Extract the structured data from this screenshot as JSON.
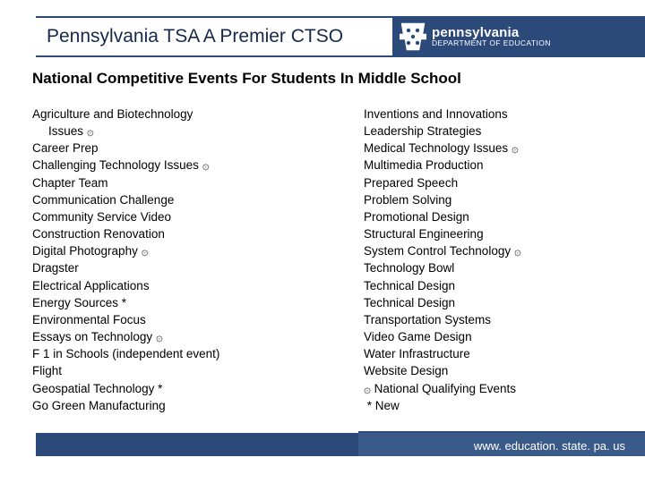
{
  "colors": {
    "primary": "#2b4a7a",
    "primary_light": "#3a5a8a",
    "text": "#000000",
    "title_text": "#16294a",
    "white": "#ffffff"
  },
  "header": {
    "title": "Pennsylvania TSA A Premier CTSO",
    "logo_line1": "pennsylvania",
    "logo_line2": "DEPARTMENT OF EDUCATION"
  },
  "subtitle": "National Competitive Events For Students In Middle School",
  "left_column": [
    {
      "text": "Agriculture and Biotechnology",
      "indent": false
    },
    {
      "text": "Issues ۞",
      "indent": true
    },
    {
      "text": "Career Prep",
      "indent": false
    },
    {
      "text": "Challenging Technology Issues ۞",
      "indent": false
    },
    {
      "text": "Chapter Team",
      "indent": false
    },
    {
      "text": "Communication Challenge",
      "indent": false
    },
    {
      "text": "Community Service Video",
      "indent": false
    },
    {
      "text": "Construction Renovation",
      "indent": false
    },
    {
      "text": "Digital Photography ۞",
      "indent": false
    },
    {
      "text": "Dragster",
      "indent": false
    },
    {
      "text": "Electrical Applications",
      "indent": false
    },
    {
      "text": "Energy Sources *",
      "indent": false
    },
    {
      "text": "Environmental Focus",
      "indent": false
    },
    {
      "text": "Essays on Technology ۞",
      "indent": false
    },
    {
      "text": "F 1 in Schools (independent event)",
      "indent": false
    },
    {
      "text": "Flight",
      "indent": false
    },
    {
      "text": "Geospatial Technology *",
      "indent": false
    },
    {
      "text": "Go Green Manufacturing",
      "indent": false
    }
  ],
  "right_column": [
    {
      "text": "Inventions and Innovations",
      "indent": false
    },
    {
      "text": "Leadership Strategies",
      "indent": false
    },
    {
      "text": "Medical Technology Issues ۞",
      "indent": false
    },
    {
      "text": "Multimedia Production",
      "indent": false
    },
    {
      "text": "Prepared Speech",
      "indent": false
    },
    {
      "text": "Problem Solving",
      "indent": false
    },
    {
      "text": "Promotional Design",
      "indent": false
    },
    {
      "text": "Structural Engineering",
      "indent": false
    },
    {
      "text": "System Control Technology ۞",
      "indent": false
    },
    {
      "text": "Technology Bowl",
      "indent": false
    },
    {
      "text": "Technical Design",
      "indent": false
    },
    {
      "text": "Technical Design",
      "indent": false
    },
    {
      "text": "Transportation Systems",
      "indent": false
    },
    {
      "text": "Video Game Design",
      "indent": false
    },
    {
      "text": "Water Infrastructure",
      "indent": false
    },
    {
      "text": "Website Design",
      "indent": false
    },
    {
      "text": "۞ National Qualifying Events",
      "indent": false
    },
    {
      "text": " * New",
      "indent": false
    }
  ],
  "footer_url": "www. education. state. pa. us"
}
